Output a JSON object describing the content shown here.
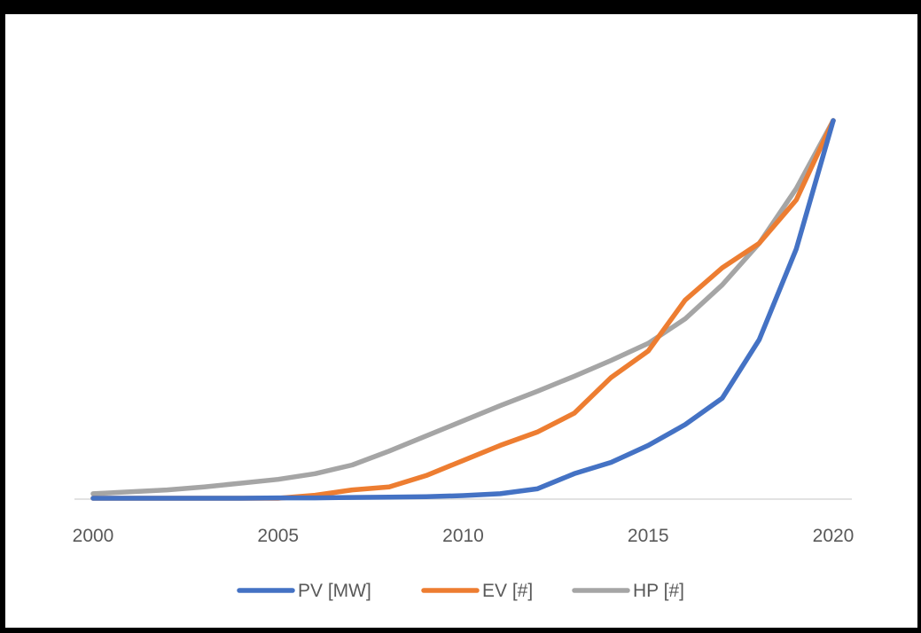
{
  "chart_data": {
    "type": "line",
    "x": [
      2000,
      2001,
      2002,
      2003,
      2004,
      2005,
      2006,
      2007,
      2008,
      2009,
      2010,
      2011,
      2012,
      2013,
      2014,
      2015,
      2016,
      2017,
      2018,
      2019,
      2020
    ],
    "x_ticks": [
      "2000",
      "2005",
      "2010",
      "2015",
      "2020"
    ],
    "xlim": [
      2000,
      2020
    ],
    "ylim": [
      0,
      100
    ],
    "y_axis_labels_shown": false,
    "grid": false,
    "legend_position": "bottom",
    "series": [
      {
        "name": "PV [MW]",
        "color": "#4472C4",
        "values": [
          0,
          0,
          0,
          0,
          0,
          0.1,
          0.1,
          0.2,
          0.3,
          0.4,
          0.7,
          1.2,
          2.5,
          6.5,
          9.5,
          14,
          19.5,
          26.5,
          42,
          66,
          100
        ]
      },
      {
        "name": "EV [#]",
        "color": "#ED7D31",
        "values": [
          0,
          0,
          0,
          0,
          0,
          0,
          0.8,
          2.2,
          3,
          6,
          10,
          14,
          17.5,
          22.5,
          32,
          39,
          52.5,
          61,
          67.5,
          79,
          100
        ]
      },
      {
        "name": "HP [#]",
        "color": "#A5A5A5",
        "values": [
          1.2,
          1.7,
          2.2,
          3,
          4,
          5,
          6.5,
          8.8,
          12.5,
          16.5,
          20.5,
          24.5,
          28.3,
          32.3,
          36.5,
          41,
          47.5,
          56.5,
          67.5,
          82,
          100
        ]
      }
    ]
  }
}
